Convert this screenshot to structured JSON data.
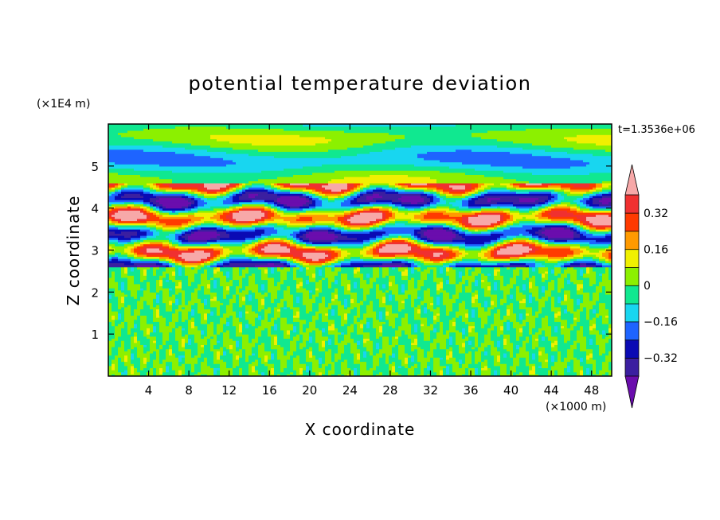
{
  "chart_data": {
    "type": "heatmap",
    "title": "potential temperature deviation",
    "xlabel": "X coordinate",
    "ylabel": "Z coordinate",
    "x_unit": "(×1000 m)",
    "y_unit": "(×1E4 m)",
    "time_label": "t=1.3536e+06",
    "xlim": [
      0,
      50
    ],
    "ylim": [
      0,
      6
    ],
    "x_ticks": [
      4,
      8,
      12,
      16,
      20,
      24,
      28,
      32,
      36,
      40,
      44,
      48
    ],
    "y_ticks": [
      1,
      2,
      3,
      4,
      5
    ],
    "colorbar": {
      "levels": [
        -0.4,
        -0.32,
        -0.24,
        -0.16,
        -0.08,
        0,
        0.08,
        0.16,
        0.24,
        0.32,
        0.4
      ],
      "labeled_ticks": [
        "0.32",
        "0.16",
        "0",
        "−0.16",
        "−0.32"
      ],
      "labeled_values": [
        0.32,
        0.16,
        0,
        -0.16,
        -0.32
      ],
      "colors_low_to_high": [
        "#6a0dad",
        "#3b1fa0",
        "#0a0ab4",
        "#1e64ff",
        "#18d6f0",
        "#10e890",
        "#8cf000",
        "#f0f000",
        "#ff9a00",
        "#ff3a00",
        "#f03030",
        "#f7a8a8"
      ]
    },
    "field_regions": [
      {
        "z_range": [
          0,
          2.6
        ],
        "description": "small-scale noise",
        "range": [
          -0.08,
          0.08
        ]
      },
      {
        "z_range": [
          2.6,
          4.6
        ],
        "description": "layered strong perturbations",
        "range": [
          -0.4,
          0.4
        ]
      },
      {
        "z_range": [
          4.6,
          6
        ],
        "description": "weak horizontal bands",
        "range": [
          -0.2,
          0.16
        ]
      }
    ]
  }
}
